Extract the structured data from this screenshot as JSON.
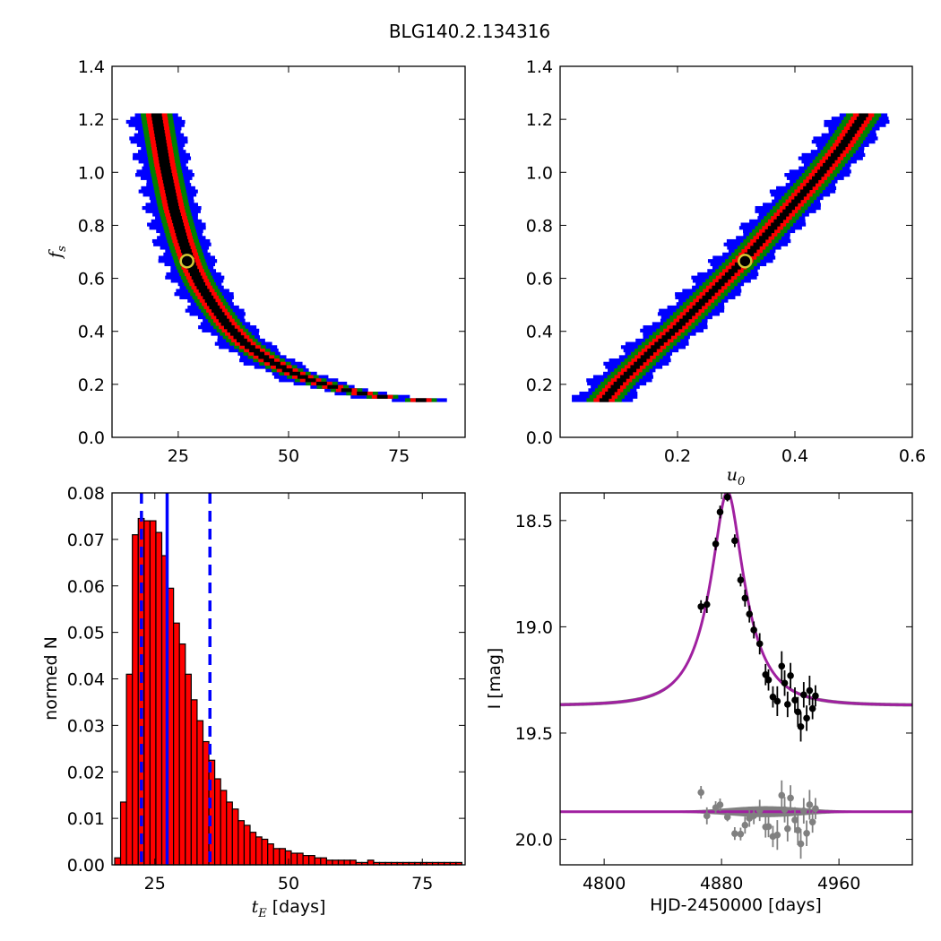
{
  "figure": {
    "title": "BLG140.2.134316"
  },
  "chart_data": [
    {
      "id": "fs_vs_tE",
      "type": "heatmap",
      "title": "",
      "xlabel": "",
      "ylabel": "f_s",
      "xlim": [
        10,
        90
      ],
      "ylim": [
        0.0,
        1.4
      ],
      "xticks": [
        25,
        50,
        75
      ],
      "yticks": [
        "0.0",
        "0.2",
        "0.4",
        "0.6",
        "0.8",
        "1.0",
        "1.2",
        "1.4"
      ],
      "contour_levels": [
        {
          "level": "outer",
          "color": "#0000ff"
        },
        {
          "level": "middle",
          "color": "#008000"
        },
        {
          "level": "inner",
          "color": "#ff0000"
        },
        {
          "level": "core",
          "color": "#000000"
        }
      ],
      "band": {
        "x": [
          20,
          22,
          24,
          26,
          28,
          30,
          33,
          36,
          40,
          45,
          50,
          55,
          60,
          65,
          70,
          75,
          80
        ],
        "y": [
          1.22,
          1.02,
          0.86,
          0.74,
          0.64,
          0.57,
          0.49,
          0.42,
          0.35,
          0.29,
          0.245,
          0.21,
          0.185,
          0.165,
          0.15,
          0.14,
          0.135
        ],
        "widths_x": [
          1.2,
          2.4,
          3.6,
          4.8
        ]
      },
      "best_fit": {
        "x": 27,
        "y": 0.665
      }
    },
    {
      "id": "fs_vs_u0",
      "type": "heatmap",
      "title": "",
      "xlabel": "u_0",
      "ylabel": "",
      "xlim": [
        0.0,
        0.6
      ],
      "ylim": [
        0.0,
        1.4
      ],
      "xticks": [
        "0.2",
        "0.4",
        "0.6"
      ],
      "yticks": [
        "0.0",
        "0.2",
        "0.4",
        "0.6",
        "0.8",
        "1.0",
        "1.2",
        "1.4"
      ],
      "band": {
        "x": [
          0.075,
          0.1,
          0.13,
          0.16,
          0.2,
          0.24,
          0.28,
          0.32,
          0.36,
          0.4,
          0.44,
          0.48,
          0.52
        ],
        "y": [
          0.135,
          0.2,
          0.265,
          0.33,
          0.41,
          0.5,
          0.59,
          0.68,
          0.78,
          0.88,
          0.98,
          1.09,
          1.22
        ],
        "widths_x": [
          0.008,
          0.018,
          0.03,
          0.04
        ]
      },
      "best_fit": {
        "x": 0.315,
        "y": 0.665
      }
    },
    {
      "id": "tE_histogram",
      "type": "bar",
      "title": "",
      "xlabel": "t_E",
      "xlabel_suffix": " [days]",
      "ylabel": "normed N",
      "xlim": [
        17,
        83
      ],
      "ylim": [
        0.0,
        0.08
      ],
      "xticks": [
        25,
        50,
        75
      ],
      "yticks": [
        "0.00",
        "0.01",
        "0.02",
        "0.03",
        "0.04",
        "0.05",
        "0.06",
        "0.07",
        "0.08"
      ],
      "bin_start": 17.5,
      "bin_width": 1.1,
      "values": [
        0.0015,
        0.0135,
        0.041,
        0.071,
        0.0745,
        0.074,
        0.074,
        0.0715,
        0.0665,
        0.0595,
        0.052,
        0.0475,
        0.041,
        0.0355,
        0.031,
        0.0265,
        0.0225,
        0.0185,
        0.016,
        0.0135,
        0.012,
        0.0095,
        0.0085,
        0.007,
        0.006,
        0.0055,
        0.0045,
        0.0035,
        0.0035,
        0.003,
        0.0025,
        0.0025,
        0.002,
        0.002,
        0.0015,
        0.0015,
        0.001,
        0.001,
        0.001,
        0.001,
        0.001,
        0.0005,
        0.0005,
        0.001,
        0.0005,
        0.0005,
        0.0005,
        0.0005,
        0.0005,
        0.0005,
        0.0005,
        0.0005,
        0.0005,
        0.0005,
        0.0005,
        0.0005,
        0.0005,
        0.0005,
        0.0005
      ],
      "bar_color": "#ff0000",
      "median": 27.3,
      "bounds": [
        22.5,
        35.3
      ],
      "line_color": "#0000ff"
    },
    {
      "id": "lightcurve",
      "type": "scatter",
      "title": "",
      "xlabel": "HJD-2450000 [days]",
      "ylabel": "I [mag]",
      "xlim": [
        4770,
        5010
      ],
      "ylim": [
        20.12,
        18.37
      ],
      "ylim_note": "inverted magnitude axis",
      "xticks": [
        4800,
        4880,
        4960
      ],
      "yticks": [
        "18.5",
        "19.0",
        "19.5",
        "20.0"
      ],
      "model": {
        "t0": 4884,
        "tE": 27,
        "u0": 0.315,
        "fs": 0.665,
        "I_base": 19.37,
        "color": "#a020a0"
      },
      "residual_offset_mag": 19.87,
      "points": {
        "t": [
          4866,
          4870,
          4876,
          4879,
          4884,
          4889,
          4893,
          4896,
          4899,
          4902,
          4906,
          4910,
          4912,
          4915,
          4918,
          4921,
          4923,
          4925,
          4927,
          4930,
          4932,
          4934,
          4936,
          4938,
          4940,
          4942,
          4944
        ],
        "I": [
          18.905,
          18.895,
          18.61,
          18.46,
          18.39,
          18.595,
          18.78,
          18.865,
          18.94,
          19.015,
          19.08,
          19.225,
          19.25,
          19.33,
          19.35,
          19.185,
          19.265,
          19.365,
          19.23,
          19.345,
          19.4,
          19.47,
          19.32,
          19.43,
          19.3,
          19.385,
          19.325
        ],
        "err": [
          0.03,
          0.04,
          0.03,
          0.03,
          0.02,
          0.03,
          0.03,
          0.04,
          0.04,
          0.04,
          0.05,
          0.05,
          0.05,
          0.05,
          0.07,
          0.07,
          0.06,
          0.06,
          0.06,
          0.06,
          0.07,
          0.07,
          0.06,
          0.06,
          0.07,
          0.05,
          0.05
        ],
        "residual_color": "#808080"
      }
    }
  ]
}
